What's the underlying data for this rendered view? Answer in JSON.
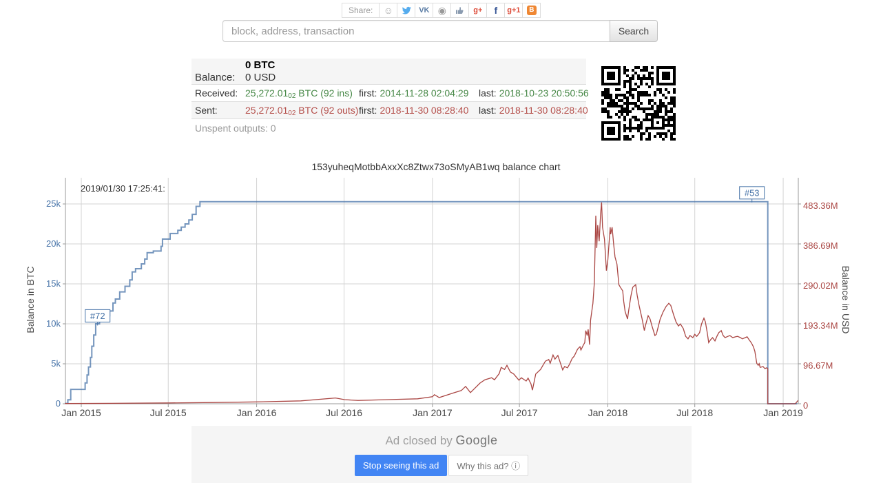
{
  "share": {
    "label": "Share:",
    "icons": [
      {
        "name": "reddit-icon",
        "kind": "text",
        "glyph": "☺",
        "color": "#a9a9a9"
      },
      {
        "name": "twitter-icon",
        "kind": "bird",
        "glyph": "",
        "color": "#55acee"
      },
      {
        "name": "vk-icon",
        "kind": "text",
        "glyph": "VK",
        "color": "#5b7da5"
      },
      {
        "name": "weibo-icon",
        "kind": "text",
        "glyph": "◉",
        "color": "#9a9a9a"
      },
      {
        "name": "like-icon",
        "kind": "thumb",
        "glyph": "",
        "color": "#8a9bb0"
      },
      {
        "name": "google-plus-icon",
        "kind": "text",
        "glyph": "g+",
        "color": "#dd4b39"
      },
      {
        "name": "facebook-icon",
        "kind": "text",
        "glyph": "f",
        "color": "#3b5998"
      },
      {
        "name": "google-plus-one-icon",
        "kind": "text",
        "glyph": "g+1",
        "color": "#dd4b39"
      },
      {
        "name": "blogger-icon",
        "kind": "badge",
        "glyph": "B",
        "color": "#ef8733"
      }
    ]
  },
  "search": {
    "placeholder": "block, address, transaction",
    "button": "Search"
  },
  "summary": {
    "balance_label": "Balance:",
    "balance_btc": "0 BTC",
    "balance_usd": "0 USD",
    "received_label": "Received:",
    "received_value": "25,272.01",
    "received_sub": "02",
    "received_suffix": " BTC (92 ins)",
    "first_label": "first:",
    "last_label": "last:",
    "received_first": "2014-11-28 02:04:29",
    "received_last": "2018-10-23 20:50:56",
    "sent_label": "Sent:",
    "sent_value": "25,272.01",
    "sent_sub": "02",
    "sent_suffix": " BTC (92 outs)",
    "sent_first": "2018-11-30 08:28:40",
    "sent_last": "2018-11-30 08:28:40",
    "unspent_label": "Unspent outputs:",
    "unspent_value": "0"
  },
  "chart_title": "153yuheqMotbbAxxXc8Ztwx73oSMyAB1wq balance chart",
  "chart_data": {
    "type": "line",
    "title": "153yuheqMotbbAxxXc8Ztwx73oSMyAB1wq balance chart",
    "timestamp_label": "2019/01/30 17:25:41:",
    "grid": true,
    "x_ticks": [
      {
        "label": "Jan 2015",
        "date": "2015-01-01"
      },
      {
        "label": "Jul 2015",
        "date": "2015-07-01"
      },
      {
        "label": "Jan 2016",
        "date": "2016-01-01"
      },
      {
        "label": "Jul 2016",
        "date": "2016-07-01"
      },
      {
        "label": "Jan 2017",
        "date": "2017-01-01"
      },
      {
        "label": "Jul 2017",
        "date": "2017-07-01"
      },
      {
        "label": "Jan 2018",
        "date": "2018-01-01"
      },
      {
        "label": "Jul 2018",
        "date": "2018-07-01"
      },
      {
        "label": "Jan 2019",
        "date": "2019-01-01"
      }
    ],
    "left_axis": {
      "label": "Balance in BTC",
      "color": "#4572a7",
      "tick_values": [
        0,
        5000,
        10000,
        15000,
        20000,
        25000
      ],
      "tick_labels": [
        "0",
        "5k",
        "10k",
        "15k",
        "20k",
        "25k"
      ],
      "range": [
        0,
        25000
      ]
    },
    "right_axis": {
      "label": "Balance in USD",
      "color": "#aa4643",
      "unit": "millions USD",
      "tick_values": [
        0,
        96.67,
        193.34,
        290.02,
        386.69,
        483.36
      ],
      "tick_labels": [
        "0",
        "96.67M",
        "193.34M",
        "290.02M",
        "386.69M",
        "483.36M"
      ],
      "range": [
        0,
        483.36
      ]
    },
    "annotations": [
      {
        "label": "#72",
        "date": "2015-02-04",
        "btc": 11000,
        "dy": 0
      },
      {
        "label": "#53",
        "date": "2018-10-28",
        "btc": 25272,
        "dy": -13
      }
    ],
    "series": [
      {
        "name": "Balance in BTC",
        "axis": "left",
        "color": "#4572a7",
        "step": true,
        "points": [
          [
            "2014-11-28",
            40
          ],
          [
            "2014-12-04",
            500
          ],
          [
            "2014-12-10",
            1800
          ],
          [
            "2015-01-06",
            1800
          ],
          [
            "2015-01-09",
            2600
          ],
          [
            "2015-01-13",
            3600
          ],
          [
            "2015-01-16",
            4600
          ],
          [
            "2015-01-20",
            5800
          ],
          [
            "2015-01-23",
            7200
          ],
          [
            "2015-01-27",
            8600
          ],
          [
            "2015-01-31",
            10000
          ],
          [
            "2015-02-08",
            10400
          ],
          [
            "2015-02-18",
            11000
          ],
          [
            "2015-03-01",
            11600
          ],
          [
            "2015-03-08",
            12600
          ],
          [
            "2015-03-13",
            13100
          ],
          [
            "2015-03-22",
            14000
          ],
          [
            "2015-04-02",
            14700
          ],
          [
            "2015-04-12",
            15500
          ],
          [
            "2015-04-17",
            16500
          ],
          [
            "2015-04-24",
            16900
          ],
          [
            "2015-05-06",
            17500
          ],
          [
            "2015-05-13",
            18100
          ],
          [
            "2015-05-18",
            18900
          ],
          [
            "2015-05-31",
            19100
          ],
          [
            "2015-06-16",
            19700
          ],
          [
            "2015-06-19",
            20600
          ],
          [
            "2015-07-05",
            21300
          ],
          [
            "2015-07-21",
            21700
          ],
          [
            "2015-07-28",
            22100
          ],
          [
            "2015-08-05",
            22500
          ],
          [
            "2015-08-13",
            23000
          ],
          [
            "2015-08-20",
            23700
          ],
          [
            "2015-08-28",
            24700
          ],
          [
            "2015-09-05",
            25272
          ],
          [
            "2018-11-29",
            25272
          ],
          [
            "2018-11-30",
            0
          ],
          [
            "2019-01-30",
            0
          ]
        ]
      },
      {
        "name": "Balance in USD",
        "axis": "right",
        "color": "#aa4643",
        "step": false,
        "points": [
          [
            "2014-11-28",
            0.5
          ],
          [
            "2015-03-01",
            1
          ],
          [
            "2015-07-02",
            2
          ],
          [
            "2015-10-01",
            3
          ],
          [
            "2016-01-02",
            4.5
          ],
          [
            "2016-04-02",
            7
          ],
          [
            "2016-06-13",
            14
          ],
          [
            "2016-07-02",
            10
          ],
          [
            "2016-07-30",
            8
          ],
          [
            "2016-09-30",
            10
          ],
          [
            "2016-12-01",
            12
          ],
          [
            "2017-01-01",
            17
          ],
          [
            "2017-01-05",
            22
          ],
          [
            "2017-01-15",
            15
          ],
          [
            "2017-02-16",
            27
          ],
          [
            "2017-03-02",
            32
          ],
          [
            "2017-03-11",
            42
          ],
          [
            "2017-03-21",
            27
          ],
          [
            "2017-04-10",
            50
          ],
          [
            "2017-04-20",
            58
          ],
          [
            "2017-05-04",
            63
          ],
          [
            "2017-05-10",
            58
          ],
          [
            "2017-05-20",
            73
          ],
          [
            "2017-05-24",
            88
          ],
          [
            "2017-05-31",
            83
          ],
          [
            "2017-06-05",
            93
          ],
          [
            "2017-06-12",
            77
          ],
          [
            "2017-06-19",
            72
          ],
          [
            "2017-06-30",
            57
          ],
          [
            "2017-07-05",
            63
          ],
          [
            "2017-07-15",
            55
          ],
          [
            "2017-07-19",
            62
          ],
          [
            "2017-07-25",
            48
          ],
          [
            "2017-07-28",
            33
          ],
          [
            "2017-08-04",
            72
          ],
          [
            "2017-08-14",
            83
          ],
          [
            "2017-08-24",
            103
          ],
          [
            "2017-08-31",
            107
          ],
          [
            "2017-09-03",
            98
          ],
          [
            "2017-09-09",
            118
          ],
          [
            "2017-09-13",
            108
          ],
          [
            "2017-09-19",
            117
          ],
          [
            "2017-09-23",
            103
          ],
          [
            "2017-09-29",
            82
          ],
          [
            "2017-10-03",
            90
          ],
          [
            "2017-10-09",
            87
          ],
          [
            "2017-10-13",
            95
          ],
          [
            "2017-10-19",
            110
          ],
          [
            "2017-10-23",
            115
          ],
          [
            "2017-10-30",
            132
          ],
          [
            "2017-11-04",
            138
          ],
          [
            "2017-11-06",
            130
          ],
          [
            "2017-11-11",
            142
          ],
          [
            "2017-11-14",
            148
          ],
          [
            "2017-11-16",
            177
          ],
          [
            "2017-11-19",
            165
          ],
          [
            "2017-11-21",
            180
          ],
          [
            "2017-11-24",
            143
          ],
          [
            "2017-11-26",
            202
          ],
          [
            "2017-12-01",
            243
          ],
          [
            "2017-12-04",
            293
          ],
          [
            "2017-12-07",
            455
          ],
          [
            "2017-12-09",
            377
          ],
          [
            "2017-12-11",
            432
          ],
          [
            "2017-12-14",
            393
          ],
          [
            "2017-12-17",
            460
          ],
          [
            "2017-12-19",
            487
          ],
          [
            "2017-12-21",
            427
          ],
          [
            "2017-12-25",
            398
          ],
          [
            "2017-12-29",
            322
          ],
          [
            "2018-01-01",
            348
          ],
          [
            "2018-01-06",
            427
          ],
          [
            "2018-01-07",
            410
          ],
          [
            "2018-01-10",
            427
          ],
          [
            "2018-01-13",
            388
          ],
          [
            "2018-01-16",
            355
          ],
          [
            "2018-01-20",
            338
          ],
          [
            "2018-01-24",
            288
          ],
          [
            "2018-01-27",
            282
          ],
          [
            "2018-02-01",
            273
          ],
          [
            "2018-02-03",
            248
          ],
          [
            "2018-02-06",
            223
          ],
          [
            "2018-02-11",
            205
          ],
          [
            "2018-02-13",
            223
          ],
          [
            "2018-02-18",
            260
          ],
          [
            "2018-02-22",
            282
          ],
          [
            "2018-02-28",
            288
          ],
          [
            "2018-03-03",
            263
          ],
          [
            "2018-03-07",
            238
          ],
          [
            "2018-03-13",
            207
          ],
          [
            "2018-03-18",
            177
          ],
          [
            "2018-03-20",
            188
          ],
          [
            "2018-03-26",
            213
          ],
          [
            "2018-03-30",
            205
          ],
          [
            "2018-04-03",
            188
          ],
          [
            "2018-04-09",
            165
          ],
          [
            "2018-04-12",
            168
          ],
          [
            "2018-04-15",
            182
          ],
          [
            "2018-04-20",
            205
          ],
          [
            "2018-04-26",
            222
          ],
          [
            "2018-05-02",
            235
          ],
          [
            "2018-05-08",
            243
          ],
          [
            "2018-05-12",
            238
          ],
          [
            "2018-05-18",
            215
          ],
          [
            "2018-05-23",
            198
          ],
          [
            "2018-05-28",
            188
          ],
          [
            "2018-06-01",
            193
          ],
          [
            "2018-06-07",
            182
          ],
          [
            "2018-06-12",
            163
          ],
          [
            "2018-06-17",
            157
          ],
          [
            "2018-06-21",
            165
          ],
          [
            "2018-06-27",
            160
          ],
          [
            "2018-07-01",
            168
          ],
          [
            "2018-07-05",
            163
          ],
          [
            "2018-07-11",
            172
          ],
          [
            "2018-07-15",
            193
          ],
          [
            "2018-07-20",
            207
          ],
          [
            "2018-07-23",
            198
          ],
          [
            "2018-07-27",
            172
          ],
          [
            "2018-07-30",
            148
          ],
          [
            "2018-08-03",
            155
          ],
          [
            "2018-08-07",
            160
          ],
          [
            "2018-08-12",
            152
          ],
          [
            "2018-08-16",
            163
          ],
          [
            "2018-08-20",
            172
          ],
          [
            "2018-08-25",
            177
          ],
          [
            "2018-08-29",
            165
          ],
          [
            "2018-09-02",
            160
          ],
          [
            "2018-09-08",
            163
          ],
          [
            "2018-09-12",
            165
          ],
          [
            "2018-09-18",
            160
          ],
          [
            "2018-09-24",
            162
          ],
          [
            "2018-09-28",
            163
          ],
          [
            "2018-10-04",
            160
          ],
          [
            "2018-10-08",
            157
          ],
          [
            "2018-10-14",
            160
          ],
          [
            "2018-10-18",
            162
          ],
          [
            "2018-10-22",
            155
          ],
          [
            "2018-10-27",
            147
          ],
          [
            "2018-10-31",
            138
          ],
          [
            "2018-11-03",
            127
          ],
          [
            "2018-11-07",
            98
          ],
          [
            "2018-11-10",
            93
          ],
          [
            "2018-11-12",
            97
          ],
          [
            "2018-11-14",
            88
          ],
          [
            "2018-11-20",
            90
          ],
          [
            "2018-11-24",
            85
          ],
          [
            "2018-11-28",
            87
          ],
          [
            "2018-11-30",
            85
          ],
          [
            "2018-11-30",
            0
          ],
          [
            "2019-01-26",
            0
          ],
          [
            "2019-02-01",
            8
          ]
        ]
      }
    ]
  },
  "ad": {
    "closed_text": "Ad closed by",
    "brand": "Google",
    "stop_button": "Stop seeing this ad",
    "why_button": "Why this ad?",
    "info_icon": "ⓘ"
  }
}
